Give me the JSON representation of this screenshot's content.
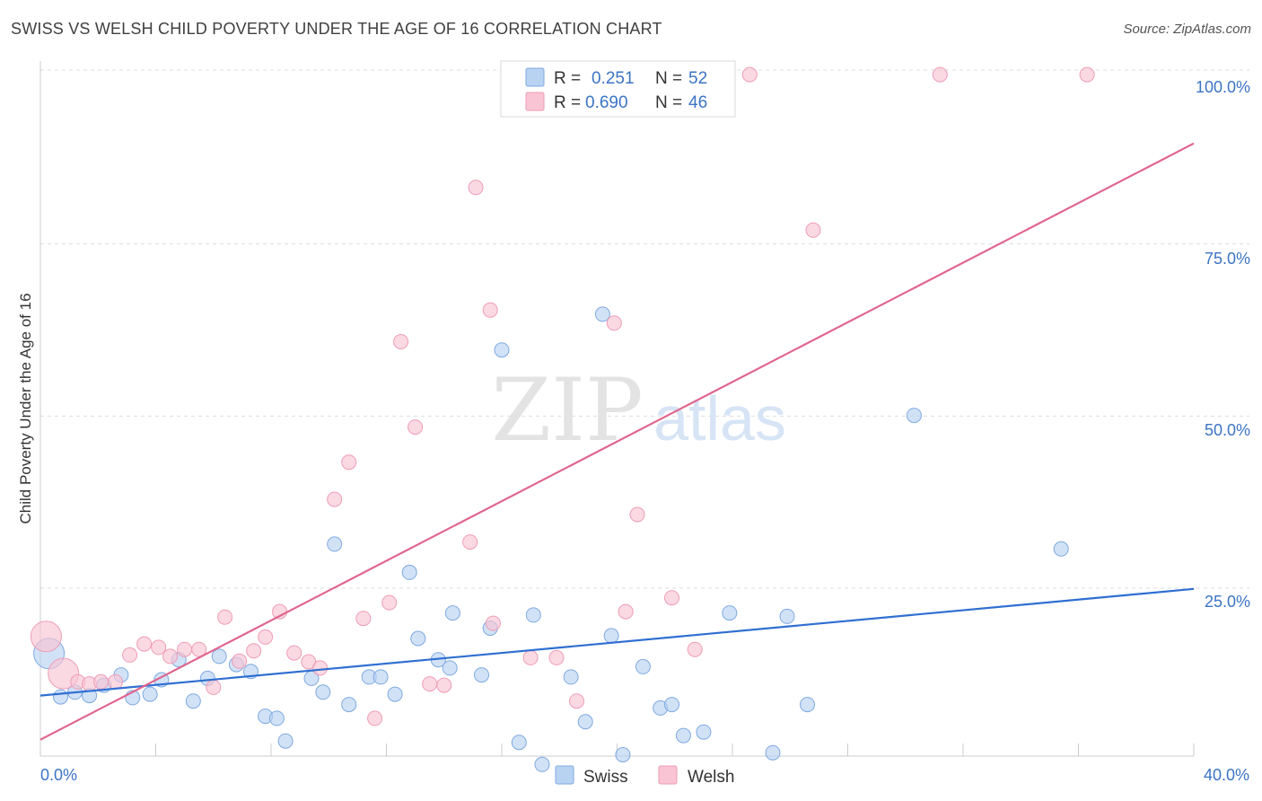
{
  "header": {
    "title": "SWISS VS WELSH CHILD POVERTY UNDER THE AGE OF 16 CORRELATION CHART",
    "source": "Source: ZipAtlas.com"
  },
  "watermark": {
    "zip": "ZIP",
    "atlas": "atlas"
  },
  "colors": {
    "swiss_fill": "#b8d2f2",
    "swiss_stroke": "#7fa9e0",
    "swiss_line": "#2f6fd1",
    "welsh_fill": "#f9c4d4",
    "welsh_stroke": "#ee9cb6",
    "welsh_line": "#e0658e",
    "axis_text": "#3b74c4"
  },
  "legend": {
    "r_label": "R =",
    "n_label": "N =",
    "rows": [
      {
        "series": "Swiss",
        "r": "0.251",
        "n": "52"
      },
      {
        "series": "Welsh",
        "r": "0.690",
        "n": "46"
      }
    ]
  },
  "bottom_legend": [
    "Swiss",
    "Welsh"
  ],
  "chart_data": {
    "type": "scatter",
    "title": "SWISS VS WELSH CHILD POVERTY UNDER THE AGE OF 16 CORRELATION CHART",
    "xlabel": "",
    "ylabel": "Child Poverty Under the Age of 16",
    "xlim": [
      0,
      40
    ],
    "ylim": [
      0,
      100
    ],
    "x_ticks": [
      "0.0%",
      "40.0%"
    ],
    "y_ticks": [
      "25.0%",
      "50.0%",
      "75.0%",
      "100.0%"
    ],
    "grid": true,
    "legend_position": "top-center",
    "series": [
      {
        "name": "Swiss",
        "r": 0.251,
        "n": 52,
        "trend": {
          "x": [
            0,
            40
          ],
          "y": [
            9.4,
            24.9
          ]
        },
        "points": [
          {
            "x": 0.3,
            "y": 15.5,
            "big": true
          },
          {
            "x": 0.7,
            "y": 9.2
          },
          {
            "x": 1.2,
            "y": 9.9
          },
          {
            "x": 1.7,
            "y": 9.4
          },
          {
            "x": 2.2,
            "y": 10.9
          },
          {
            "x": 2.8,
            "y": 12.4
          },
          {
            "x": 3.2,
            "y": 9.1
          },
          {
            "x": 3.8,
            "y": 9.6
          },
          {
            "x": 4.2,
            "y": 11.7
          },
          {
            "x": 4.8,
            "y": 14.6
          },
          {
            "x": 5.3,
            "y": 8.6
          },
          {
            "x": 5.8,
            "y": 11.9
          },
          {
            "x": 6.2,
            "y": 15.1
          },
          {
            "x": 6.8,
            "y": 13.9
          },
          {
            "x": 7.3,
            "y": 12.9
          },
          {
            "x": 7.8,
            "y": 6.4
          },
          {
            "x": 8.2,
            "y": 6.1
          },
          {
            "x": 8.5,
            "y": 2.8
          },
          {
            "x": 9.4,
            "y": 11.9
          },
          {
            "x": 9.8,
            "y": 9.9
          },
          {
            "x": 10.2,
            "y": 31.4
          },
          {
            "x": 10.7,
            "y": 8.1
          },
          {
            "x": 11.4,
            "y": 12.1
          },
          {
            "x": 11.8,
            "y": 12.1
          },
          {
            "x": 12.3,
            "y": 9.6
          },
          {
            "x": 12.8,
            "y": 27.3
          },
          {
            "x": 13.1,
            "y": 17.7
          },
          {
            "x": 13.8,
            "y": 14.6
          },
          {
            "x": 14.2,
            "y": 13.4
          },
          {
            "x": 14.3,
            "y": 21.4
          },
          {
            "x": 15.3,
            "y": 12.4
          },
          {
            "x": 15.6,
            "y": 19.2
          },
          {
            "x": 16.0,
            "y": 59.6
          },
          {
            "x": 16.6,
            "y": 2.6
          },
          {
            "x": 17.1,
            "y": 21.1
          },
          {
            "x": 17.4,
            "y": -0.6
          },
          {
            "x": 18.4,
            "y": 12.1
          },
          {
            "x": 18.9,
            "y": 5.6
          },
          {
            "x": 19.5,
            "y": 64.8
          },
          {
            "x": 19.8,
            "y": 18.1
          },
          {
            "x": 20.2,
            "y": 0.8
          },
          {
            "x": 20.9,
            "y": 13.6
          },
          {
            "x": 21.5,
            "y": 7.6
          },
          {
            "x": 21.9,
            "y": 8.1
          },
          {
            "x": 22.3,
            "y": 3.6
          },
          {
            "x": 23.0,
            "y": 4.1
          },
          {
            "x": 23.9,
            "y": 21.4
          },
          {
            "x": 25.4,
            "y": 1.1
          },
          {
            "x": 25.9,
            "y": 20.9
          },
          {
            "x": 26.6,
            "y": 8.1
          },
          {
            "x": 30.3,
            "y": 50.1
          },
          {
            "x": 35.4,
            "y": 30.7
          }
        ]
      },
      {
        "name": "Welsh",
        "r": 0.69,
        "n": 46,
        "trend": {
          "x": [
            0,
            40
          ],
          "y": [
            3.0,
            89.6
          ]
        },
        "points": [
          {
            "x": 0.2,
            "y": 18.0,
            "big": true
          },
          {
            "x": 0.8,
            "y": 12.6,
            "big": true
          },
          {
            "x": 1.3,
            "y": 11.4
          },
          {
            "x": 1.7,
            "y": 11.1
          },
          {
            "x": 2.1,
            "y": 11.4
          },
          {
            "x": 2.6,
            "y": 11.4
          },
          {
            "x": 3.1,
            "y": 15.3
          },
          {
            "x": 3.6,
            "y": 16.9
          },
          {
            "x": 4.1,
            "y": 16.4
          },
          {
            "x": 4.5,
            "y": 15.1
          },
          {
            "x": 5.0,
            "y": 16.1
          },
          {
            "x": 5.5,
            "y": 16.1
          },
          {
            "x": 6.0,
            "y": 10.6
          },
          {
            "x": 6.4,
            "y": 20.8
          },
          {
            "x": 6.9,
            "y": 14.4
          },
          {
            "x": 7.4,
            "y": 15.9
          },
          {
            "x": 7.8,
            "y": 17.9
          },
          {
            "x": 8.3,
            "y": 21.6
          },
          {
            "x": 8.8,
            "y": 15.6
          },
          {
            "x": 9.3,
            "y": 14.3
          },
          {
            "x": 9.7,
            "y": 13.4
          },
          {
            "x": 10.2,
            "y": 37.9
          },
          {
            "x": 10.7,
            "y": 43.3
          },
          {
            "x": 11.2,
            "y": 20.6
          },
          {
            "x": 11.6,
            "y": 6.1
          },
          {
            "x": 12.1,
            "y": 22.9
          },
          {
            "x": 12.5,
            "y": 60.8
          },
          {
            "x": 13.0,
            "y": 48.4
          },
          {
            "x": 13.5,
            "y": 11.1
          },
          {
            "x": 14.0,
            "y": 10.9
          },
          {
            "x": 14.9,
            "y": 31.7
          },
          {
            "x": 15.1,
            "y": 83.2
          },
          {
            "x": 15.6,
            "y": 65.4
          },
          {
            "x": 15.7,
            "y": 19.9
          },
          {
            "x": 17.0,
            "y": 14.9
          },
          {
            "x": 17.9,
            "y": 14.9
          },
          {
            "x": 18.6,
            "y": 8.6
          },
          {
            "x": 19.9,
            "y": 63.5
          },
          {
            "x": 20.3,
            "y": 21.6
          },
          {
            "x": 20.7,
            "y": 35.7
          },
          {
            "x": 21.9,
            "y": 23.6
          },
          {
            "x": 22.7,
            "y": 16.1
          },
          {
            "x": 24.6,
            "y": 99.6
          },
          {
            "x": 26.8,
            "y": 77.0
          },
          {
            "x": 31.2,
            "y": 99.6
          },
          {
            "x": 36.3,
            "y": 99.6
          }
        ]
      }
    ]
  }
}
